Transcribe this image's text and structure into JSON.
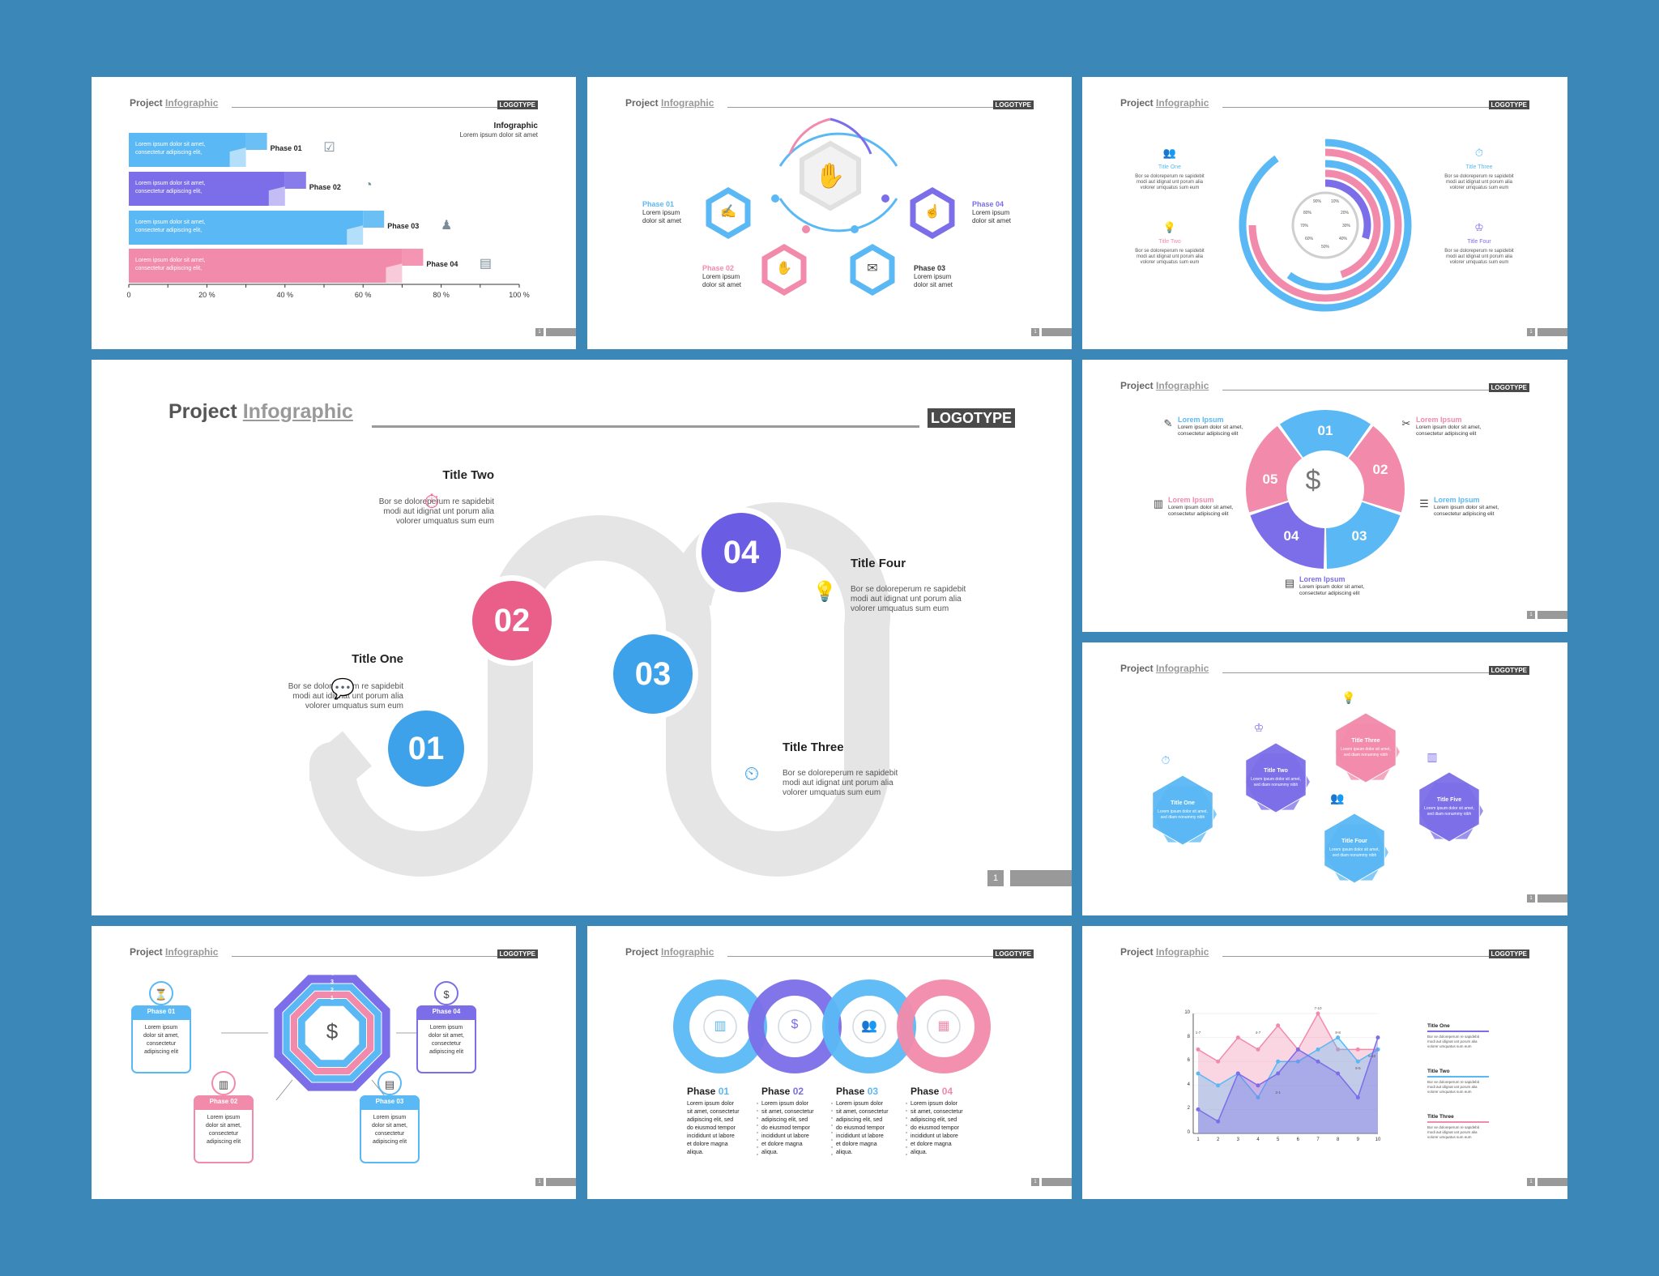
{
  "common": {
    "project": "Project",
    "infographic": "Infographic",
    "logotype": "LOGOTYPE",
    "page": "1"
  },
  "s1": {
    "ttl": "Infographic",
    "sub": "Lorem ipsum dolor sit amet",
    "bars": [
      {
        "l1": "Lorem ipsum dolor sit amet,",
        "l2": "consectetur adipiscing elit,",
        "ph": "Phase 01",
        "value": 30,
        "color": "#5ab8f4"
      },
      {
        "l1": "Lorem ipsum dolor sit amet,",
        "l2": "consectetur adipiscing elit,",
        "ph": "Phase 02",
        "value": 40,
        "color": "#7b6ee8"
      },
      {
        "l1": "Lorem ipsum dolor sit amet,",
        "l2": "consectetur adipiscing elit,",
        "ph": "Phase 03",
        "value": 60,
        "color": "#5ab8f4"
      },
      {
        "l1": "Lorem ipsum dolor sit amet,",
        "l2": "consectetur adipiscing elit,",
        "ph": "Phase 04",
        "value": 70,
        "color": "#f28aab"
      }
    ],
    "ticks": [
      "0",
      "20 %",
      "40 %",
      "60 %",
      "80 %",
      "100 %"
    ]
  },
  "s2": {
    "items": [
      {
        "ph": "Phase 01",
        "l1": "Lorem ipsum",
        "l2": "dolor sit amet",
        "color": "#5ab8f4"
      },
      {
        "ph": "Phase 02",
        "l1": "Lorem ipsum",
        "l2": "dolor sit amet",
        "color": "#f28aab"
      },
      {
        "ph": "Phase 03",
        "l1": "Lorem ipsum",
        "l2": "dolor sit amet",
        "color": "#333333"
      },
      {
        "ph": "Phase 04",
        "l1": "Lorem ipsum",
        "l2": "dolor sit amet",
        "color": "#7b6ee8"
      }
    ]
  },
  "s3": {
    "titles": [
      {
        "t": "Title One",
        "a": "Bor se doloreperum re sapidebit",
        "b": "modi aut idignat unt porum alia",
        "c": "volorer umquatus sum eum"
      },
      {
        "t": "Title Two",
        "a": "Bor se doloreperum re sapidebit",
        "b": "modi aut idignat unt porum alia",
        "c": "volorer umquatus sum eum"
      },
      {
        "t": "Title Three",
        "a": "Bor se doloreperum re sapidebit",
        "b": "modi aut idignat unt porum alia",
        "c": "volorer umquatus sum eum"
      },
      {
        "t": "Title Four",
        "a": "Bor se doloreperum re sapidebit",
        "b": "modi aut idignat unt porum alia",
        "c": "volorer umquatus sum eum"
      }
    ],
    "gauge": [
      "90%",
      "10%",
      "80%",
      "20%",
      "70%",
      "30%",
      "60%",
      "40%",
      "50%"
    ],
    "arcs": [
      {
        "value": 30,
        "color": "#7b6ee8"
      },
      {
        "value": 45,
        "color": "#f28aab"
      },
      {
        "value": 60,
        "color": "#5ab8f4"
      },
      {
        "value": 75,
        "color": "#f28aab"
      },
      {
        "value": 90,
        "color": "#5ab8f4"
      }
    ]
  },
  "s4": {
    "nums": [
      "01",
      "02",
      "03",
      "04"
    ],
    "t1": "Title One",
    "t1a": "Bor se doloreperum re sapidebit",
    "t1b": "modi aut idignat unt porum alia",
    "t1c": "volorer umquatus sum eum",
    "t2": "Title Two",
    "t2a": "Bor se doloreperum re sapidebit",
    "t2b": "modi aut idignat unt porum alia",
    "t2c": "volorer umquatus sum eum",
    "t3": "Title Three",
    "t3a": "Bor se doloreperum re sapidebit",
    "t3b": "modi aut idignat unt porum alia",
    "t3c": "volorer umquatus sum eum",
    "t4": "Title Four",
    "t4a": "Bor se doloreperum re sapidebit",
    "t4b": "modi aut idignat unt porum alia",
    "t4c": "volorer umquatus sum eum"
  },
  "s5": {
    "nums": [
      "01",
      "02",
      "03",
      "04",
      "05"
    ],
    "items": [
      {
        "t": "Lorem Ipsum",
        "a": "Lorem ipsum dolor sit amet,",
        "b": "consectetur adipiscing elit",
        "color": "#5ab8f4"
      },
      {
        "t": "Lorem Ipsum",
        "a": "Lorem ipsum dolor sit amet,",
        "b": "consectetur adipiscing elit",
        "color": "#f28aab"
      },
      {
        "t": "Lorem Ipsum",
        "a": "Lorem ipsum dolor sit amet,",
        "b": "consectetur adipiscing elit",
        "color": "#f28aab"
      },
      {
        "t": "Lorem Ipsum",
        "a": "Lorem ipsum dolor sit amet,",
        "b": "consectetur adipiscing elit",
        "color": "#5ab8f4"
      },
      {
        "t": "Lorem Ipsum",
        "a": "Lorem ipsum dolor sit amet,",
        "b": "consectetur adipiscing elit",
        "color": "#7b6ee8"
      }
    ]
  },
  "s6": {
    "hexes": [
      {
        "t": "Title One",
        "a": "Lorem ipsum dolor sit amet,",
        "b": "sed diam nonummy nibh",
        "color": "#5ab8f4"
      },
      {
        "t": "Title Two",
        "a": "Lorem ipsum dolor sit amet,",
        "b": "sed diam nonummy nibh",
        "color": "#7b6ee8"
      },
      {
        "t": "Title Three",
        "a": "Lorem ipsum dolor sit amet,",
        "b": "sed diam nonummy nibh",
        "color": "#f28aab"
      },
      {
        "t": "Title Four",
        "a": "Lorem ipsum dolor sit amet,",
        "b": "sed diam nonummy nibh",
        "color": "#5ab8f4"
      },
      {
        "t": "Title Five",
        "a": "Lorem ipsum dolor sit amet,",
        "b": "sed diam nonummy nibh",
        "color": "#7b6ee8"
      }
    ]
  },
  "s7": {
    "rings": [
      "4",
      "3",
      "2",
      "1"
    ],
    "boxes": [
      {
        "ph": "Phase 01",
        "a": "Lorem ipsum",
        "b": "dolor sit amet,",
        "c": "consectetur",
        "d": "adipiscing elit",
        "color": "#5ab8f4"
      },
      {
        "ph": "Phase 02",
        "a": "Lorem ipsum",
        "b": "dolor sit amet,",
        "c": "consectetur",
        "d": "adipiscing elit",
        "color": "#f28aab"
      },
      {
        "ph": "Phase 03",
        "a": "Lorem ipsum",
        "b": "dolor sit amet,",
        "c": "consectetur",
        "d": "adipiscing elit",
        "color": "#5ab8f4"
      },
      {
        "ph": "Phase 04",
        "a": "Lorem ipsum",
        "b": "dolor sit amet,",
        "c": "consectetur",
        "d": "adipiscing elit",
        "color": "#7b6ee8"
      }
    ]
  },
  "s8": {
    "phases": [
      {
        "p": "Phase",
        "n": "01",
        "l1": "Lorem ipsum dolor",
        "l2": "sit amet, consectetur",
        "l3": "adipiscing elit, sed",
        "l4": "do eiusmod tempor",
        "l5": "incididunt ut labore",
        "l6": "et dolore magna",
        "l7": "aliqua.",
        "color": "#5ab8f4"
      },
      {
        "p": "Phase",
        "n": "02",
        "l1": "Lorem ipsum dolor",
        "l2": "sit amet, consectetur",
        "l3": "adipiscing elit, sed",
        "l4": "do eiusmod tempor",
        "l5": "incididunt ut labore",
        "l6": "et dolore magna",
        "l7": "aliqua.",
        "color": "#7b6ee8"
      },
      {
        "p": "Phase",
        "n": "03",
        "l1": "Lorem ipsum dolor",
        "l2": "sit amet, consectetur",
        "l3": "adipiscing elit, sed",
        "l4": "do eiusmod tempor",
        "l5": "incididunt ut labore",
        "l6": "et dolore magna",
        "l7": "aliqua.",
        "color": "#5ab8f4"
      },
      {
        "p": "Phase",
        "n": "04",
        "l1": "Lorem ipsum dolor",
        "l2": "sit amet, consectetur",
        "l3": "adipiscing elit, sed",
        "l4": "do eiusmod tempor",
        "l5": "incididunt ut labore",
        "l6": "et dolore magna",
        "l7": "aliqua.",
        "color": "#f28aab"
      }
    ]
  },
  "s9": {
    "legend": [
      {
        "t": "Title One",
        "a": "Bor se doloreperum re sapidebit",
        "b": "modi aut idignat unt porum alia",
        "c": "volorer umquatus sum eum",
        "color": "#7b6ee8"
      },
      {
        "t": "Title Two",
        "a": "Bor se doloreperum re sapidebit",
        "b": "modi aut idignat unt porum alia",
        "c": "volorer umquatus sum eum",
        "color": "#5ab8f4"
      },
      {
        "t": "Title Three",
        "a": "Bor se doloreperum re sapidebit",
        "b": "modi aut idignat unt porum alia",
        "c": "volorer umquatus sum eum",
        "color": "#f28aab"
      }
    ]
  },
  "chart_data": [
    {
      "type": "bar",
      "title": "Infographic",
      "categories": [
        "Phase 01",
        "Phase 02",
        "Phase 03",
        "Phase 04"
      ],
      "values": [
        30,
        40,
        60,
        70
      ],
      "xlabel": "",
      "ylabel": "",
      "xlim": [
        0,
        100
      ]
    },
    {
      "type": "area",
      "title": "",
      "x": [
        1,
        2,
        3,
        4,
        5,
        6,
        7,
        8,
        9,
        10
      ],
      "series": [
        {
          "name": "Title One",
          "values": [
            2,
            1,
            5,
            4,
            5,
            7,
            6,
            5,
            3,
            8
          ]
        },
        {
          "name": "Title Two",
          "values": [
            5,
            4,
            5,
            3,
            6,
            6,
            7,
            8,
            6,
            7
          ]
        },
        {
          "name": "Title Three",
          "values": [
            7,
            6,
            8,
            7,
            9,
            7,
            10,
            7,
            7,
            7
          ]
        }
      ],
      "annotations": [
        "1-7",
        "4-7",
        "7-10",
        "8-8",
        "9-10",
        "3-1",
        "9-5"
      ],
      "ylim": [
        0,
        10
      ],
      "yticks": [
        "0",
        "2",
        "4",
        "6",
        "8",
        "10"
      ],
      "xticks": [
        "1",
        "2",
        "3",
        "4",
        "5",
        "6",
        "7",
        "8",
        "9",
        "10"
      ]
    }
  ]
}
